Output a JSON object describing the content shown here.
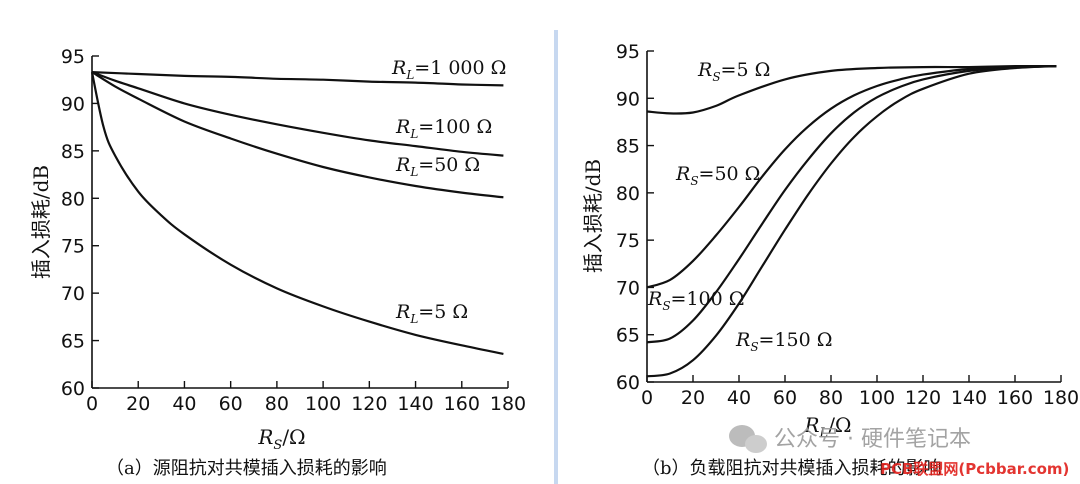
{
  "chart_data": [
    {
      "type": "line",
      "caption": "（a）源阻抗对共模插入损耗的影响",
      "xlabel": "R",
      "xlabel_sub": "S",
      "xlabel_unit": "/Ω",
      "ylabel": "插入损耗/dB",
      "xlim": [
        0,
        180
      ],
      "ylim": [
        60,
        95
      ],
      "xticks": [
        0,
        20,
        40,
        60,
        80,
        100,
        120,
        140,
        160,
        180
      ],
      "yticks": [
        60,
        65,
        70,
        75,
        80,
        85,
        90,
        95
      ],
      "series": [
        {
          "name": "RL=1 000 Ω",
          "label_main": "R",
          "label_sub": "L",
          "label_val": "=1 000 Ω",
          "x": [
            0,
            20,
            40,
            60,
            80,
            100,
            120,
            140,
            160,
            178
          ],
          "y": [
            93.3,
            93.1,
            92.9,
            92.8,
            92.6,
            92.5,
            92.3,
            92.2,
            92.0,
            91.9
          ]
        },
        {
          "name": "RL=100 Ω",
          "label_main": "R",
          "label_sub": "L",
          "label_val": "=100 Ω",
          "x": [
            0,
            10,
            20,
            40,
            60,
            80,
            100,
            120,
            140,
            160,
            178
          ],
          "y": [
            93.3,
            92.4,
            91.6,
            90.0,
            88.8,
            87.8,
            86.9,
            86.1,
            85.5,
            84.9,
            84.5
          ]
        },
        {
          "name": "RL=50 Ω",
          "label_main": "R",
          "label_sub": "L",
          "label_val": "=50 Ω",
          "x": [
            0,
            10,
            20,
            40,
            60,
            80,
            100,
            120,
            140,
            160,
            178
          ],
          "y": [
            93.3,
            91.8,
            90.5,
            88.1,
            86.3,
            84.7,
            83.3,
            82.2,
            81.3,
            80.6,
            80.1
          ]
        },
        {
          "name": "RL=5 Ω",
          "label_main": "R",
          "label_sub": "L",
          "label_val": "=5 Ω",
          "x": [
            0,
            5,
            10,
            20,
            30,
            40,
            60,
            80,
            100,
            120,
            140,
            160,
            178
          ],
          "y": [
            93.3,
            87.5,
            84.5,
            80.7,
            78.2,
            76.2,
            73.0,
            70.5,
            68.6,
            67.0,
            65.6,
            64.5,
            63.6
          ]
        }
      ]
    },
    {
      "type": "line",
      "caption": "（b）负载阻抗对共模插入损耗的影响",
      "xlabel": "R",
      "xlabel_sub": "L",
      "xlabel_unit": "/Ω",
      "ylabel": "插入损耗/dB",
      "xlim": [
        0,
        180
      ],
      "ylim": [
        60,
        95
      ],
      "xticks": [
        0,
        20,
        40,
        60,
        80,
        100,
        120,
        140,
        160,
        180
      ],
      "yticks": [
        60,
        65,
        70,
        75,
        80,
        85,
        90,
        95
      ],
      "series": [
        {
          "name": "RS=5 Ω",
          "label_main": "R",
          "label_sub": "S",
          "label_val": "=5 Ω",
          "x": [
            0,
            10,
            20,
            30,
            40,
            60,
            80,
            100,
            120,
            140,
            160,
            178
          ],
          "y": [
            88.6,
            88.4,
            88.5,
            89.2,
            90.3,
            92.0,
            92.9,
            93.2,
            93.3,
            93.3,
            93.4,
            93.4
          ]
        },
        {
          "name": "RS=50 Ω",
          "label_main": "R",
          "label_sub": "S",
          "label_val": "=50 Ω",
          "x": [
            0,
            10,
            20,
            30,
            40,
            50,
            60,
            70,
            80,
            90,
            100,
            110,
            120,
            140,
            160,
            178
          ],
          "y": [
            70.0,
            70.8,
            72.8,
            75.5,
            78.5,
            81.7,
            84.6,
            87.0,
            88.9,
            90.3,
            91.3,
            92.0,
            92.5,
            93.1,
            93.3,
            93.4
          ]
        },
        {
          "name": "RS=100 Ω",
          "label_main": "R",
          "label_sub": "S",
          "label_val": "=100 Ω",
          "x": [
            0,
            10,
            20,
            30,
            40,
            50,
            60,
            70,
            80,
            90,
            100,
            110,
            120,
            140,
            160,
            178
          ],
          "y": [
            64.2,
            64.6,
            66.5,
            69.5,
            73.0,
            76.7,
            80.3,
            83.5,
            86.3,
            88.5,
            90.1,
            91.2,
            92.0,
            92.9,
            93.3,
            93.4
          ]
        },
        {
          "name": "RS=150 Ω",
          "label_main": "R",
          "label_sub": "S",
          "label_val": "=150 Ω",
          "x": [
            0,
            10,
            20,
            30,
            40,
            50,
            60,
            70,
            80,
            90,
            100,
            110,
            120,
            140,
            160,
            178
          ],
          "y": [
            60.6,
            60.9,
            62.3,
            64.9,
            68.3,
            72.2,
            76.1,
            79.8,
            83.1,
            85.9,
            88.1,
            89.8,
            91.0,
            92.6,
            93.2,
            93.4
          ]
        }
      ]
    }
  ],
  "watermark": {
    "text": "公众号 · 硬件笔记本",
    "site": "PCB联盟网(Pcbbar.com)"
  }
}
